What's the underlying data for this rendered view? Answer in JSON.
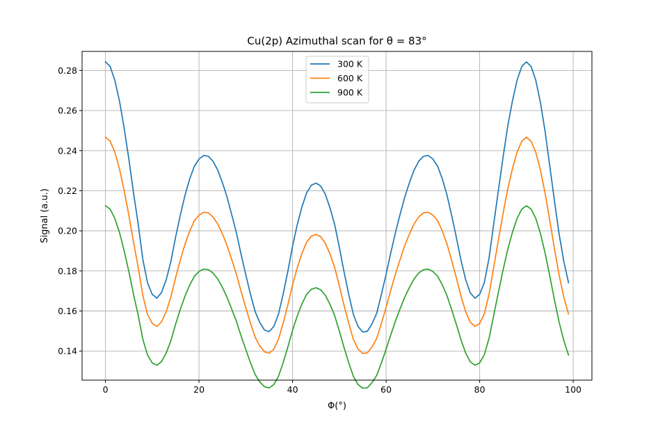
{
  "chart_data": {
    "type": "line",
    "title": "Cu(2p) Azimuthal scan for θ = 83°",
    "xlabel": "Φ(°)",
    "ylabel": "Signal (a.u.)",
    "xlim": [
      -5,
      104
    ],
    "ylim": [
      0.1255,
      0.2895
    ],
    "xticks": [
      0,
      20,
      40,
      60,
      80,
      100
    ],
    "yticks": [
      0.14,
      0.16,
      0.18,
      0.2,
      0.22,
      0.24,
      0.26,
      0.28
    ],
    "ytick_labels": [
      "0.14",
      "0.16",
      "0.18",
      "0.20",
      "0.22",
      "0.24",
      "0.26",
      "0.28"
    ],
    "grid": true,
    "legend_position": "upper-center",
    "x": [
      0,
      1,
      2,
      3,
      4,
      5,
      6,
      7,
      8,
      9,
      10,
      11,
      12,
      13,
      14,
      15,
      16,
      17,
      18,
      19,
      20,
      21,
      22,
      23,
      24,
      25,
      26,
      27,
      28,
      29,
      30,
      31,
      32,
      33,
      34,
      35,
      36,
      37,
      38,
      39,
      40,
      41,
      42,
      43,
      44,
      45,
      46,
      47,
      48,
      49,
      50,
      51,
      52,
      53,
      54,
      55,
      56,
      57,
      58,
      59,
      60,
      61,
      62,
      63,
      64,
      65,
      66,
      67,
      68,
      69,
      70,
      71,
      72,
      73,
      74,
      75,
      76,
      77,
      78,
      79,
      80,
      81,
      82,
      83,
      84,
      85,
      86,
      87,
      88,
      89,
      90,
      91,
      92,
      93,
      94,
      95,
      96,
      97,
      98,
      99
    ],
    "series": [
      {
        "name": "300 K",
        "color": "#1f77b4",
        "values": [
          0.2843,
          0.282,
          0.2751,
          0.2647,
          0.2512,
          0.2358,
          0.2189,
          0.2033,
          0.1856,
          0.174,
          0.1683,
          0.1664,
          0.1693,
          0.1757,
          0.1849,
          0.1969,
          0.2078,
          0.2177,
          0.2258,
          0.2322,
          0.2358,
          0.2376,
          0.2372,
          0.2347,
          0.2303,
          0.2241,
          0.2168,
          0.208,
          0.1989,
          0.1882,
          0.1781,
          0.1684,
          0.1597,
          0.1542,
          0.1505,
          0.1497,
          0.1523,
          0.1585,
          0.1686,
          0.1799,
          0.1924,
          0.203,
          0.2119,
          0.2189,
          0.2227,
          0.2238,
          0.2224,
          0.2183,
          0.2115,
          0.2032,
          0.1918,
          0.1796,
          0.1684,
          0.1583,
          0.1523,
          0.1495,
          0.1499,
          0.1536,
          0.159,
          0.1684,
          0.1783,
          0.189,
          0.1991,
          0.2083,
          0.2169,
          0.2241,
          0.2304,
          0.2348,
          0.2372,
          0.2376,
          0.2358,
          0.2323,
          0.226,
          0.218,
          0.2078,
          0.1969,
          0.1854,
          0.1757,
          0.169,
          0.1664,
          0.1683,
          0.1743,
          0.1863,
          0.2033,
          0.2201,
          0.2367,
          0.2522,
          0.2647,
          0.2751,
          0.282,
          0.2843,
          0.282,
          0.2751,
          0.2639,
          0.2494,
          0.2322,
          0.2147,
          0.1982,
          0.1846,
          0.1741
        ]
      },
      {
        "name": "600 K",
        "color": "#ff7f0e",
        "values": [
          0.2467,
          0.2447,
          0.2392,
          0.2309,
          0.2201,
          0.2078,
          0.1943,
          0.1818,
          0.1676,
          0.1583,
          0.1538,
          0.1523,
          0.1546,
          0.1597,
          0.1671,
          0.1767,
          0.1854,
          0.1933,
          0.1998,
          0.205,
          0.2078,
          0.2093,
          0.209,
          0.2069,
          0.2034,
          0.1985,
          0.1926,
          0.1856,
          0.1783,
          0.1697,
          0.1617,
          0.1539,
          0.1469,
          0.1425,
          0.1396,
          0.1389,
          0.141,
          0.146,
          0.154,
          0.1631,
          0.1731,
          0.1815,
          0.1887,
          0.1943,
          0.1973,
          0.1982,
          0.1971,
          0.1938,
          0.1884,
          0.1818,
          0.1726,
          0.1629,
          0.1539,
          0.1458,
          0.141,
          0.1388,
          0.1391,
          0.1421,
          0.1464,
          0.1539,
          0.1618,
          0.1704,
          0.1785,
          0.1858,
          0.1927,
          0.1985,
          0.2035,
          0.207,
          0.209,
          0.2093,
          0.2078,
          0.2051,
          0.2,
          0.1936,
          0.1854,
          0.1767,
          0.1675,
          0.1597,
          0.1544,
          0.1523,
          0.1538,
          0.1586,
          0.1682,
          0.1818,
          0.1953,
          0.2086,
          0.2209,
          0.2309,
          0.2392,
          0.2447,
          0.2467,
          0.2447,
          0.2392,
          0.2303,
          0.2186,
          0.205,
          0.1909,
          0.1777,
          0.1669,
          0.1585
        ]
      },
      {
        "name": "900 K",
        "color": "#2ca02c",
        "values": [
          0.2125,
          0.2108,
          0.2062,
          0.1992,
          0.19,
          0.1797,
          0.1683,
          0.1578,
          0.1458,
          0.138,
          0.1341,
          0.1329,
          0.1348,
          0.1391,
          0.1453,
          0.1534,
          0.1608,
          0.1674,
          0.1729,
          0.1773,
          0.1797,
          0.1809,
          0.1806,
          0.1789,
          0.176,
          0.1718,
          0.1668,
          0.1609,
          0.1548,
          0.1475,
          0.1408,
          0.1342,
          0.1283,
          0.1246,
          0.1222,
          0.1216,
          0.1233,
          0.1275,
          0.1343,
          0.142,
          0.1504,
          0.1575,
          0.1635,
          0.1683,
          0.1708,
          0.1716,
          0.1706,
          0.1679,
          0.1633,
          0.1577,
          0.15,
          0.1418,
          0.1342,
          0.1274,
          0.1233,
          0.1215,
          0.1217,
          0.1243,
          0.1279,
          0.1342,
          0.1409,
          0.1481,
          0.155,
          0.1612,
          0.167,
          0.1718,
          0.1761,
          0.179,
          0.1806,
          0.1809,
          0.1797,
          0.1774,
          0.1731,
          0.1677,
          0.1608,
          0.1534,
          0.1457,
          0.1391,
          0.1346,
          0.1329,
          0.1341,
          0.1382,
          0.1463,
          0.1578,
          0.1692,
          0.1804,
          0.1907,
          0.1992,
          0.2062,
          0.2108,
          0.2125,
          0.2108,
          0.2062,
          0.1986,
          0.1888,
          0.1773,
          0.1654,
          0.1543,
          0.1452,
          0.138
        ]
      }
    ]
  }
}
